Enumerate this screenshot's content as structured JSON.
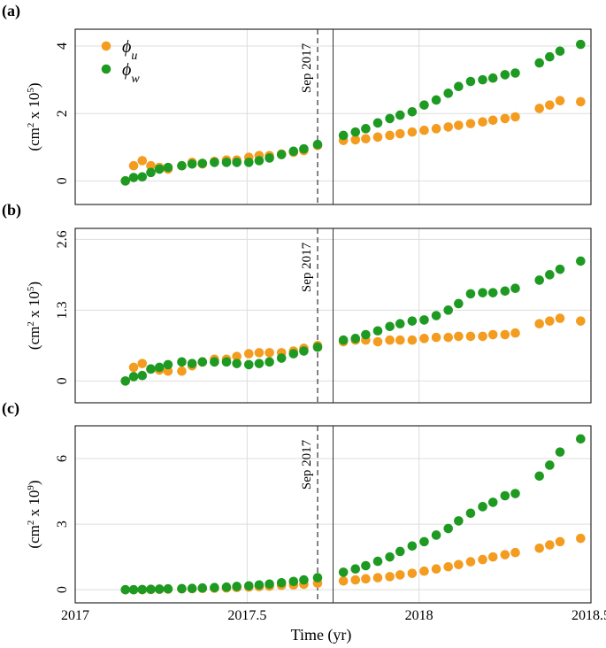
{
  "chart_data": {
    "type": "scatter",
    "xlabel": "Time (yr)",
    "xlim": [
      2017,
      2018.5
    ],
    "xticks": [
      2017,
      2017.5,
      2018,
      2018.5
    ],
    "xtick_labels": [
      "2017",
      "2017.5",
      "2018",
      "2018.5"
    ],
    "grid": true,
    "legend": {
      "placement": "top-left of panel (a)",
      "entries": [
        {
          "symbol": "ϕ",
          "sub": "u",
          "color": "#F39C1F"
        },
        {
          "symbol": "ϕ",
          "sub": "w",
          "color": "#1E9A22"
        }
      ]
    },
    "colors": {
      "u": "#F39C1F",
      "w": "#1E9A22",
      "grid": "#dddddd",
      "vline": "#333333"
    },
    "annotation": {
      "text": "Sep 2017",
      "x": 2017.705,
      "x2": 2017.75
    },
    "panels": [
      {
        "label": "(a)",
        "ylabel": {
          "base": "(cm",
          "sup1": "2",
          "mid": " x 10",
          "sup2": "5",
          "end": ")"
        },
        "ylim": [
          -0.7,
          4.5
        ],
        "yticks": [
          0,
          2,
          4
        ],
        "ytick_labels": [
          "0",
          "2",
          "4"
        ],
        "series": [
          {
            "name": "u",
            "x": [
              2017.146,
              2017.17,
              2017.195,
              2017.22,
              2017.245,
              2017.27,
              2017.31,
              2017.34,
              2017.37,
              2017.405,
              2017.44,
              2017.47,
              2017.505,
              2017.535,
              2017.565,
              2017.6,
              2017.635,
              2017.665,
              2017.705,
              2017.78,
              2017.815,
              2017.845,
              2017.88,
              2017.915,
              2017.945,
              2017.98,
              2018.015,
              2018.05,
              2018.085,
              2018.115,
              2018.15,
              2018.185,
              2018.215,
              2018.25,
              2018.28,
              2018.35,
              2018.38,
              2018.41,
              2018.47
            ],
            "y": [
              0.0,
              0.45,
              0.6,
              0.45,
              0.4,
              0.35,
              0.45,
              0.55,
              0.5,
              0.58,
              0.62,
              0.62,
              0.7,
              0.75,
              0.75,
              0.8,
              0.85,
              0.9,
              1.05,
              1.2,
              1.22,
              1.25,
              1.3,
              1.35,
              1.4,
              1.45,
              1.5,
              1.55,
              1.6,
              1.65,
              1.7,
              1.75,
              1.8,
              1.85,
              1.9,
              2.15,
              2.25,
              2.38,
              2.35
            ]
          },
          {
            "name": "w",
            "x": [
              2017.146,
              2017.17,
              2017.195,
              2017.22,
              2017.245,
              2017.27,
              2017.31,
              2017.34,
              2017.37,
              2017.405,
              2017.44,
              2017.47,
              2017.505,
              2017.535,
              2017.565,
              2017.6,
              2017.635,
              2017.665,
              2017.705,
              2017.78,
              2017.815,
              2017.845,
              2017.88,
              2017.915,
              2017.945,
              2017.98,
              2018.015,
              2018.05,
              2018.085,
              2018.115,
              2018.15,
              2018.185,
              2018.215,
              2018.25,
              2018.28,
              2018.35,
              2018.38,
              2018.41,
              2018.47
            ],
            "y": [
              0.0,
              0.1,
              0.12,
              0.25,
              0.35,
              0.4,
              0.45,
              0.5,
              0.52,
              0.55,
              0.55,
              0.55,
              0.55,
              0.6,
              0.68,
              0.78,
              0.88,
              0.95,
              1.08,
              1.35,
              1.45,
              1.55,
              1.72,
              1.85,
              1.95,
              2.05,
              2.25,
              2.4,
              2.6,
              2.8,
              2.95,
              3.0,
              3.05,
              3.15,
              3.2,
              3.5,
              3.68,
              3.85,
              4.05
            ]
          }
        ]
      },
      {
        "label": "(b)",
        "ylabel": {
          "base": "(cm",
          "sup1": "2",
          "mid": " x 10",
          "sup2": "5",
          "end": ")"
        },
        "ylim": [
          -0.4,
          2.8
        ],
        "yticks": [
          0,
          1.3,
          2.6
        ],
        "ytick_labels": [
          "0",
          "1.3",
          "2.6"
        ],
        "series": [
          {
            "name": "u",
            "x": [
              2017.146,
              2017.17,
              2017.195,
              2017.22,
              2017.245,
              2017.27,
              2017.31,
              2017.34,
              2017.37,
              2017.405,
              2017.44,
              2017.47,
              2017.505,
              2017.535,
              2017.565,
              2017.6,
              2017.635,
              2017.665,
              2017.705,
              2017.78,
              2017.815,
              2017.845,
              2017.88,
              2017.915,
              2017.945,
              2017.98,
              2018.015,
              2018.05,
              2018.085,
              2018.115,
              2018.15,
              2018.185,
              2018.215,
              2018.25,
              2018.28,
              2018.35,
              2018.38,
              2018.41,
              2018.47
            ],
            "y": [
              0.0,
              0.25,
              0.32,
              0.22,
              0.2,
              0.18,
              0.18,
              0.28,
              0.35,
              0.4,
              0.4,
              0.45,
              0.5,
              0.52,
              0.52,
              0.52,
              0.55,
              0.6,
              0.65,
              0.72,
              0.75,
              0.75,
              0.72,
              0.75,
              0.75,
              0.75,
              0.78,
              0.8,
              0.8,
              0.82,
              0.82,
              0.82,
              0.85,
              0.85,
              0.88,
              1.05,
              1.1,
              1.15,
              1.1
            ]
          },
          {
            "name": "w",
            "x": [
              2017.146,
              2017.17,
              2017.195,
              2017.22,
              2017.245,
              2017.27,
              2017.31,
              2017.34,
              2017.37,
              2017.405,
              2017.44,
              2017.47,
              2017.505,
              2017.535,
              2017.565,
              2017.6,
              2017.635,
              2017.665,
              2017.705,
              2017.78,
              2017.815,
              2017.845,
              2017.88,
              2017.915,
              2017.945,
              2017.98,
              2018.015,
              2018.05,
              2018.085,
              2018.115,
              2018.15,
              2018.185,
              2018.215,
              2018.25,
              2018.28,
              2018.35,
              2018.38,
              2018.41,
              2018.47
            ],
            "y": [
              0.0,
              0.08,
              0.1,
              0.22,
              0.25,
              0.3,
              0.35,
              0.32,
              0.35,
              0.35,
              0.35,
              0.32,
              0.3,
              0.32,
              0.35,
              0.42,
              0.5,
              0.55,
              0.62,
              0.75,
              0.78,
              0.85,
              0.92,
              1.0,
              1.05,
              1.1,
              1.12,
              1.2,
              1.3,
              1.42,
              1.6,
              1.62,
              1.62,
              1.65,
              1.7,
              1.85,
              1.95,
              2.05,
              2.2
            ]
          }
        ]
      },
      {
        "label": "(c)",
        "ylabel": {
          "base": "(cm",
          "sup1": "2",
          "mid": " x 10",
          "sup2": "9",
          "end": ")"
        },
        "ylim": [
          -0.6,
          7.5
        ],
        "yticks": [
          0,
          3,
          6
        ],
        "ytick_labels": [
          "0",
          "3",
          "6"
        ],
        "series": [
          {
            "name": "u",
            "x": [
              2017.146,
              2017.17,
              2017.195,
              2017.22,
              2017.245,
              2017.27,
              2017.31,
              2017.34,
              2017.37,
              2017.405,
              2017.44,
              2017.47,
              2017.505,
              2017.535,
              2017.565,
              2017.6,
              2017.635,
              2017.665,
              2017.705,
              2017.78,
              2017.815,
              2017.845,
              2017.88,
              2017.915,
              2017.945,
              2017.98,
              2018.015,
              2018.05,
              2018.085,
              2018.115,
              2018.15,
              2018.185,
              2018.215,
              2018.25,
              2018.28,
              2018.35,
              2018.38,
              2018.41,
              2018.47
            ],
            "y": [
              0.0,
              0.0,
              0.0,
              0.01,
              0.02,
              0.03,
              0.04,
              0.05,
              0.06,
              0.07,
              0.08,
              0.1,
              0.12,
              0.14,
              0.16,
              0.2,
              0.22,
              0.25,
              0.3,
              0.4,
              0.45,
              0.5,
              0.55,
              0.6,
              0.68,
              0.75,
              0.85,
              0.95,
              1.05,
              1.15,
              1.28,
              1.38,
              1.5,
              1.6,
              1.7,
              1.9,
              2.05,
              2.2,
              2.35
            ]
          },
          {
            "name": "w",
            "x": [
              2017.146,
              2017.17,
              2017.195,
              2017.22,
              2017.245,
              2017.27,
              2017.31,
              2017.34,
              2017.37,
              2017.405,
              2017.44,
              2017.47,
              2017.505,
              2017.535,
              2017.565,
              2017.6,
              2017.635,
              2017.665,
              2017.705,
              2017.78,
              2017.815,
              2017.845,
              2017.88,
              2017.915,
              2017.945,
              2017.98,
              2018.015,
              2018.05,
              2018.085,
              2018.115,
              2018.15,
              2018.185,
              2018.215,
              2018.25,
              2018.28,
              2018.35,
              2018.38,
              2018.41,
              2018.47
            ],
            "y": [
              0.0,
              0.0,
              0.01,
              0.02,
              0.03,
              0.04,
              0.05,
              0.06,
              0.08,
              0.1,
              0.12,
              0.15,
              0.18,
              0.22,
              0.26,
              0.32,
              0.38,
              0.45,
              0.55,
              0.8,
              0.95,
              1.1,
              1.3,
              1.5,
              1.75,
              2.0,
              2.2,
              2.5,
              2.8,
              3.15,
              3.5,
              3.8,
              4.0,
              4.3,
              4.4,
              5.2,
              5.7,
              6.3,
              6.9
            ]
          }
        ]
      }
    ]
  }
}
